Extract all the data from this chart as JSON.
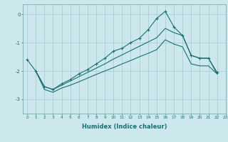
{
  "xlabel": "Humidex (Indice chaleur)",
  "bg_color": "#cce8ec",
  "grid_color": "#aacdd4",
  "line_color": "#1a7070",
  "xlim": [
    -0.5,
    23
  ],
  "ylim": [
    -3.5,
    0.35
  ],
  "yticks": [
    0,
    -1,
    -2,
    -3
  ],
  "xticks": [
    0,
    1,
    2,
    3,
    4,
    5,
    6,
    7,
    8,
    9,
    10,
    11,
    12,
    13,
    14,
    15,
    16,
    17,
    18,
    19,
    20,
    21,
    22,
    23
  ],
  "line1_x": [
    0,
    1,
    2,
    3,
    4,
    5,
    6,
    7,
    8,
    9,
    10,
    11,
    12,
    13,
    14,
    15,
    16,
    17,
    18,
    19,
    20,
    21,
    22
  ],
  "line1_y": [
    -1.6,
    -2.0,
    -2.55,
    -2.65,
    -2.45,
    -2.3,
    -2.1,
    -1.95,
    -1.75,
    -1.55,
    -1.3,
    -1.2,
    -1.0,
    -0.85,
    -0.55,
    -0.15,
    0.1,
    -0.45,
    -0.75,
    -1.45,
    -1.55,
    -1.55,
    -2.05
  ],
  "line2_x": [
    1,
    2,
    3,
    4,
    5,
    6,
    7,
    8,
    9,
    10,
    11,
    12,
    13,
    14,
    15,
    16,
    17,
    18,
    19,
    20,
    21,
    22
  ],
  "line2_y": [
    -2.0,
    -2.55,
    -2.65,
    -2.5,
    -2.35,
    -2.2,
    -2.05,
    -1.9,
    -1.75,
    -1.58,
    -1.43,
    -1.28,
    -1.13,
    -0.98,
    -0.83,
    -0.5,
    -0.65,
    -0.75,
    -1.45,
    -1.55,
    -1.55,
    -2.1
  ],
  "line3_x": [
    1,
    2,
    3,
    4,
    5,
    6,
    7,
    8,
    9,
    10,
    11,
    12,
    13,
    14,
    15,
    16,
    17,
    18,
    19,
    20,
    21,
    22
  ],
  "line3_y": [
    -2.0,
    -2.65,
    -2.75,
    -2.6,
    -2.5,
    -2.38,
    -2.25,
    -2.12,
    -2.0,
    -1.88,
    -1.75,
    -1.63,
    -1.5,
    -1.38,
    -1.25,
    -0.9,
    -1.05,
    -1.15,
    -1.75,
    -1.82,
    -1.82,
    -2.1
  ]
}
